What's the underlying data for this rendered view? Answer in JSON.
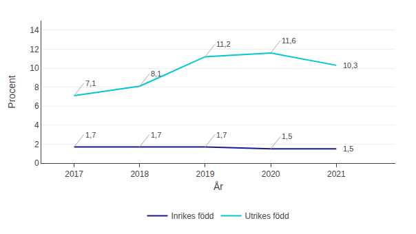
{
  "chart_data": {
    "type": "line",
    "x": [
      2017,
      2018,
      2019,
      2020,
      2021
    ],
    "series": [
      {
        "name": "Inrikes född",
        "color": "#1a1a8c",
        "values": [
          1.7,
          1.7,
          1.7,
          1.5,
          1.5
        ],
        "value_labels": [
          "1,7",
          "1,7",
          "1,7",
          "1,5",
          "1,5"
        ]
      },
      {
        "name": "Utrikes född",
        "color": "#00c8d2",
        "values": [
          7.1,
          8.1,
          11.2,
          11.6,
          10.3
        ],
        "value_labels": [
          "7,1",
          "8,1",
          "11,2",
          "11,6",
          "10,3"
        ]
      }
    ],
    "xlabel": "År",
    "ylabel": "Procent",
    "xlim": [
      2016.5,
      2021.9
    ],
    "xticks": [
      2017,
      2018,
      2019,
      2020,
      2021
    ],
    "ylim": [
      0,
      15
    ],
    "yticks": [
      0,
      2,
      4,
      6,
      8,
      10,
      12,
      14
    ],
    "grid": true,
    "legend": "bottom",
    "data_labels": true
  }
}
